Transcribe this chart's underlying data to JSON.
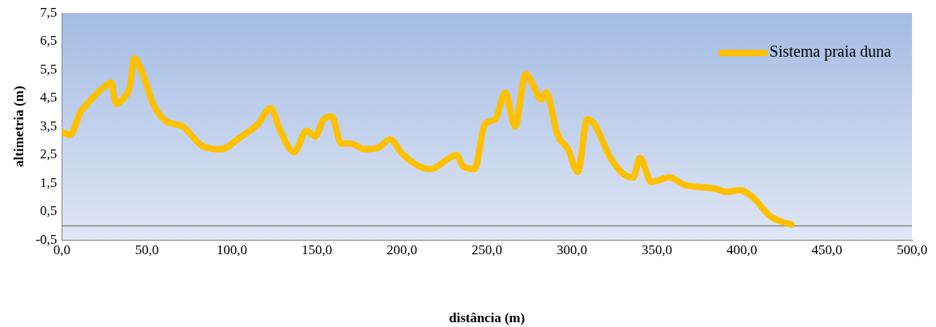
{
  "chart_data": {
    "type": "line",
    "xlabel": "distância (m)",
    "ylabel": "altimetria (m)",
    "xlim": [
      0,
      500
    ],
    "xticks": [
      {
        "value": 0,
        "label": "0,0"
      },
      {
        "value": 50,
        "label": "50,0"
      },
      {
        "value": 100,
        "label": "100,0"
      },
      {
        "value": 150,
        "label": "150,0"
      },
      {
        "value": 200,
        "label": "200,0"
      },
      {
        "value": 250,
        "label": "250,0"
      },
      {
        "value": 300,
        "label": "300,0"
      },
      {
        "value": 350,
        "label": "350,0"
      },
      {
        "value": 400,
        "label": "400,0"
      },
      {
        "value": 450,
        "label": "450,0"
      },
      {
        "value": 500,
        "label": "500,0"
      }
    ],
    "ylim": [
      -0.5,
      7.5
    ],
    "yticks": [
      {
        "value": -0.5,
        "label": "-0,5"
      },
      {
        "value": 0.5,
        "label": "0,5"
      },
      {
        "value": 1.5,
        "label": "1,5"
      },
      {
        "value": 2.5,
        "label": "2,5"
      },
      {
        "value": 3.5,
        "label": "3,5"
      },
      {
        "value": 4.5,
        "label": "4,5"
      },
      {
        "value": 5.5,
        "label": "5,5"
      },
      {
        "value": 6.5,
        "label": "6,5"
      },
      {
        "value": 7.5,
        "label": "7,5"
      }
    ],
    "grid": false,
    "legend": "top right",
    "marker": "none",
    "line_style": "solid",
    "ref_lines": [
      {
        "axis": "y",
        "value": 0,
        "color": "#868686"
      }
    ],
    "series": [
      {
        "name": "Sistema praia duna",
        "color": "#ffc000",
        "x": [
          0,
          4.8,
          11,
          18,
          24,
          29,
          32,
          36.4,
          40,
          42.7,
          47,
          54,
          61,
          71,
          83,
          93.5,
          104.5,
          115.6,
          122.7,
          128.5,
          136.6,
          144,
          149,
          154,
          158.7,
          164.4,
          170,
          178,
          186,
          193,
          200,
          210,
          217,
          227,
          232,
          236,
          242.6,
          249,
          255,
          260.8,
          266.6,
          272.8,
          278,
          281.9,
          284.8,
          291.6,
          297.7,
          303.5,
          309,
          313,
          322.6,
          329.8,
          336,
          340,
          346.6,
          357.6,
          365.8,
          377.8,
          385,
          390.7,
          399,
          406.5,
          416,
          423,
          429
        ],
        "values": [
          3.3,
          3.2,
          4.0,
          4.5,
          4.85,
          5.05,
          4.3,
          4.5,
          4.9,
          5.9,
          5.45,
          4.25,
          3.7,
          3.5,
          2.8,
          2.7,
          3.1,
          3.6,
          4.15,
          3.35,
          2.6,
          3.35,
          3.15,
          3.75,
          3.85,
          2.9,
          2.9,
          2.7,
          2.75,
          3.05,
          2.55,
          2.1,
          2.0,
          2.35,
          2.5,
          2.1,
          2.0,
          3.6,
          3.75,
          4.7,
          3.5,
          5.35,
          4.85,
          4.45,
          4.7,
          3.2,
          2.7,
          1.9,
          3.75,
          3.6,
          2.4,
          1.85,
          1.7,
          2.4,
          1.55,
          1.7,
          1.45,
          1.35,
          1.3,
          1.2,
          1.25,
          1.0,
          0.37,
          0.15,
          0.05
        ]
      }
    ]
  }
}
